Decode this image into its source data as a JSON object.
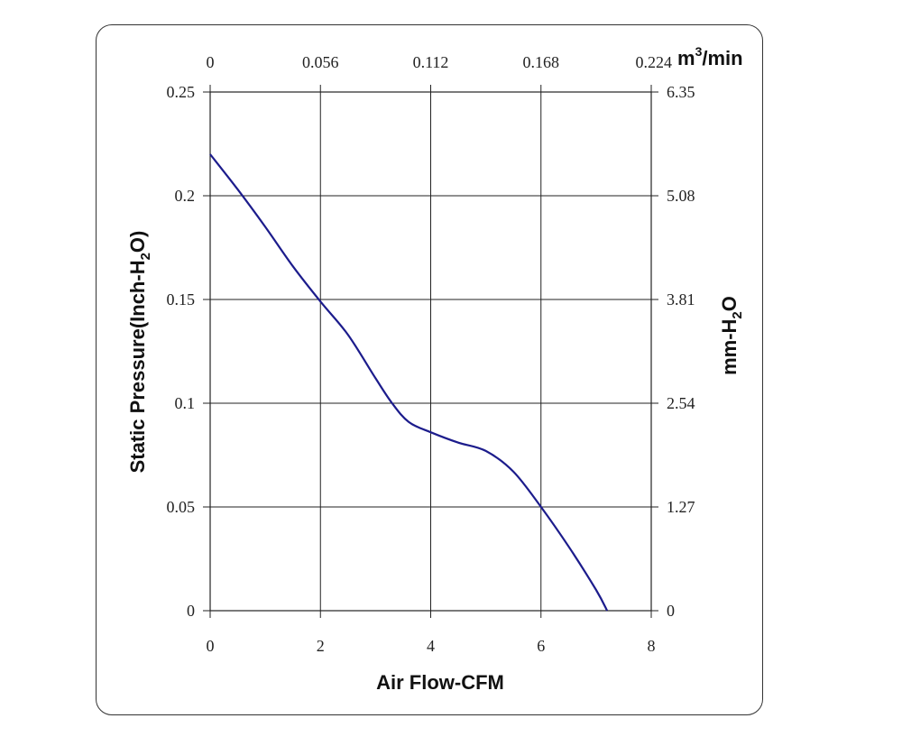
{
  "chart_data": {
    "type": "line",
    "xlabel": "Air Flow-CFM",
    "ylabel_left": {
      "main": "Static Pressure(Inch-H",
      "sub": "2",
      "end": "O)"
    },
    "ylabel_right": {
      "main": "mm-H",
      "sub": "2",
      "end": "O"
    },
    "x2label": {
      "main": "m",
      "sup": "3",
      "end": "/min"
    },
    "xlim": [
      0,
      8
    ],
    "ylim": [
      0,
      0.25
    ],
    "x_ticks": [
      "0",
      "2",
      "4",
      "6",
      "8"
    ],
    "y_ticks": [
      "0",
      "0.05",
      "0.1",
      "0.15",
      "0.2",
      "0.25"
    ],
    "x2_ticks": [
      "0",
      "0.056",
      "0.112",
      "0.168",
      "0.224"
    ],
    "y2_ticks": [
      "0",
      "1.27",
      "2.54",
      "3.81",
      "5.08",
      "6.35"
    ],
    "grid": true,
    "line_color": "#1c1c8c",
    "series": [
      {
        "x": [
          0,
          0.5,
          1.0,
          1.5,
          2.0,
          2.5,
          3.0,
          3.3,
          3.6,
          4.0,
          4.5,
          5.0,
          5.5,
          6.0,
          6.5,
          7.0,
          7.2
        ],
        "y": [
          0.22,
          0.203,
          0.185,
          0.166,
          0.149,
          0.133,
          0.112,
          0.1,
          0.091,
          0.086,
          0.081,
          0.077,
          0.067,
          0.05,
          0.031,
          0.01,
          0.0
        ]
      }
    ]
  }
}
